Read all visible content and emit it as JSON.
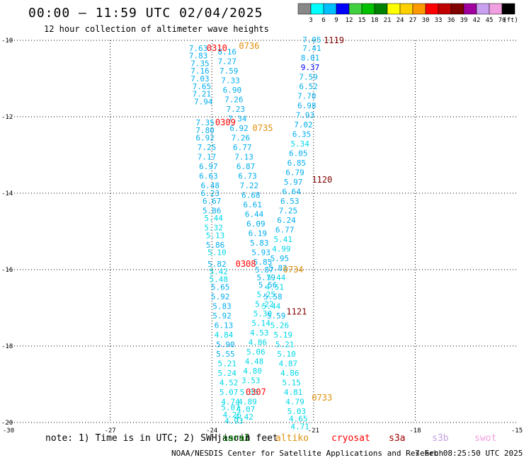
{
  "title": "00:00 – 11:59 UTC 02/04/2025",
  "subtitle": "12 hour collection of altimeter wave heights",
  "note": "note: 1) Time is in UTC; 2) SWH is in feet",
  "credit": "NOAA/NESDIS Center for Satellite Applications and Research",
  "generated": "7 Feb 08:25:50 UTC 2025",
  "satellites": [
    {
      "name": "jason3",
      "label": "jason3",
      "color": "#000000"
    },
    {
      "name": "saral",
      "label": "saral",
      "color": "#008000"
    },
    {
      "name": "altika",
      "label": "altiko",
      "color": "#e0900a"
    },
    {
      "name": "cryosat",
      "label": "cryosat",
      "color": "#ff0000"
    },
    {
      "name": "s3a",
      "label": "s3a",
      "color": "#a00000"
    },
    {
      "name": "s3b",
      "label": "s3b",
      "color": "#c0a0e0"
    },
    {
      "name": "swot",
      "label": "swot",
      "color": "#f0a0e0"
    }
  ],
  "chart_data": {
    "type": "scatter",
    "xlim": [
      -30,
      -15
    ],
    "ylim": [
      -20,
      -10
    ],
    "grid": true,
    "x_ticks": [
      "-30",
      "-27",
      "-24",
      "-21",
      "-18",
      "-15"
    ],
    "y_ticks": [
      "-10",
      "-12",
      "-14",
      "-16",
      "-18",
      "-20"
    ],
    "colorbar": {
      "unit": "(ft)",
      "labels": [
        "3",
        "6",
        "9",
        "12",
        "15",
        "18",
        "21",
        "24",
        "27",
        "30",
        "33",
        "36",
        "39",
        "42",
        "45",
        "70"
      ],
      "colors": [
        "#888888",
        "#00ffff",
        "#00bfff",
        "#0000ff",
        "#40d040",
        "#00c000",
        "#008000",
        "#ffff00",
        "#ffd000",
        "#ff9900",
        "#ff0000",
        "#c00000",
        "#800000",
        "#a000a0",
        "#c8a0f0",
        "#f0a0e0",
        "#000000"
      ]
    },
    "pass_labels": [
      {
        "text": "0310",
        "x": -23.85,
        "y": -10.2,
        "color": "#ff0000"
      },
      {
        "text": "0736",
        "x": -22.9,
        "y": -10.15,
        "color": "#e0900a"
      },
      {
        "text": "1119",
        "x": -20.4,
        "y": -10.0,
        "color": "#800000"
      },
      {
        "text": "0309",
        "x": -23.6,
        "y": -12.15,
        "color": "#ff0000"
      },
      {
        "text": "0735",
        "x": -22.5,
        "y": -12.3,
        "color": "#e0900a"
      },
      {
        "text": "1120",
        "x": -20.75,
        "y": -13.65,
        "color": "#800000"
      },
      {
        "text": "0308",
        "x": -23.0,
        "y": -15.85,
        "color": "#ff0000"
      },
      {
        "text": "0734",
        "x": -21.6,
        "y": -16.0,
        "color": "#e0900a"
      },
      {
        "text": "1121",
        "x": -21.5,
        "y": -17.1,
        "color": "#800000"
      },
      {
        "text": "0307",
        "x": -22.7,
        "y": -19.2,
        "color": "#ff0000"
      },
      {
        "text": "0733",
        "x": -20.75,
        "y": -19.35,
        "color": "#e0900a"
      }
    ],
    "series": [
      {
        "name": "cryosat",
        "color": "#00aeef",
        "points": [
          {
            "x": -24.4,
            "y": -10.2,
            "v": "7.63"
          },
          {
            "x": -24.4,
            "y": -10.4,
            "v": "7.83"
          },
          {
            "x": -24.35,
            "y": -10.6,
            "v": "7.35"
          },
          {
            "x": -24.35,
            "y": -10.8,
            "v": "7.16"
          },
          {
            "x": -24.35,
            "y": -11.0,
            "v": "7.03"
          },
          {
            "x": -24.3,
            "y": -11.2,
            "v": "7.65"
          },
          {
            "x": -24.3,
            "y": -11.4,
            "v": "7.21"
          },
          {
            "x": -24.25,
            "y": -11.6,
            "v": "7.94"
          },
          {
            "x": -24.2,
            "y": -12.15,
            "v": "7.35"
          },
          {
            "x": -24.2,
            "y": -12.35,
            "v": "7.80"
          },
          {
            "x": -24.2,
            "y": -12.55,
            "v": "6.92"
          },
          {
            "x": -24.15,
            "y": -12.8,
            "v": "7.25"
          },
          {
            "x": -24.15,
            "y": -13.05,
            "v": "7.17"
          },
          {
            "x": -24.1,
            "y": -13.3,
            "v": "6.97"
          },
          {
            "x": -24.1,
            "y": -13.55,
            "v": "6.63"
          },
          {
            "x": -24.05,
            "y": -13.8,
            "v": "6.48"
          },
          {
            "x": -24.05,
            "y": -14.0,
            "v": "6.23"
          },
          {
            "x": -24.0,
            "y": -14.2,
            "v": "6.67"
          },
          {
            "x": -24.0,
            "y": -14.45,
            "v": "5.86"
          },
          {
            "x": -23.95,
            "y": -14.65,
            "v": "5.44"
          },
          {
            "x": -23.95,
            "y": -14.9,
            "v": "5.32"
          },
          {
            "x": -23.9,
            "y": -15.1,
            "v": "5.13"
          },
          {
            "x": -23.9,
            "y": -15.35,
            "v": "5.86"
          },
          {
            "x": -23.85,
            "y": -15.55,
            "v": "5.10"
          },
          {
            "x": -23.85,
            "y": -15.85,
            "v": "5.82"
          },
          {
            "x": -23.8,
            "y": -16.05,
            "v": "5.42"
          },
          {
            "x": -23.8,
            "y": -16.25,
            "v": "5.48"
          },
          {
            "x": -23.75,
            "y": -16.45,
            "v": "5.65"
          },
          {
            "x": -23.75,
            "y": -16.7,
            "v": "5.92"
          },
          {
            "x": -23.7,
            "y": -16.95,
            "v": "5.83"
          },
          {
            "x": -23.7,
            "y": -17.2,
            "v": "5.92"
          },
          {
            "x": -23.65,
            "y": -17.45,
            "v": "6.13"
          },
          {
            "x": -23.65,
            "y": -17.7,
            "v": "4.84"
          },
          {
            "x": -23.6,
            "y": -17.95,
            "v": "5.90"
          },
          {
            "x": -23.6,
            "y": -18.2,
            "v": "5.55"
          },
          {
            "x": -23.55,
            "y": -18.45,
            "v": "5.21"
          },
          {
            "x": -23.55,
            "y": -18.7,
            "v": "5.24"
          },
          {
            "x": -23.5,
            "y": -18.95,
            "v": "4.52"
          },
          {
            "x": -23.5,
            "y": -19.2,
            "v": "5.07"
          },
          {
            "x": -23.45,
            "y": -19.45,
            "v": "4.74"
          },
          {
            "x": -23.45,
            "y": -19.6,
            "v": "5.07"
          },
          {
            "x": -23.4,
            "y": -19.8,
            "v": "4.26"
          },
          {
            "x": -23.35,
            "y": -19.95,
            "v": "4.93"
          }
        ]
      },
      {
        "name": "altika",
        "color": "#00aeef",
        "points": [
          {
            "x": -23.55,
            "y": -10.3,
            "v": "8.16"
          },
          {
            "x": -23.55,
            "y": -10.55,
            "v": "7.27"
          },
          {
            "x": -23.5,
            "y": -10.8,
            "v": "7.59"
          },
          {
            "x": -23.45,
            "y": -11.05,
            "v": "7.33"
          },
          {
            "x": -23.4,
            "y": -11.3,
            "v": "6.90"
          },
          {
            "x": -23.35,
            "y": -11.55,
            "v": "7.26"
          },
          {
            "x": -23.3,
            "y": -11.8,
            "v": "7.23"
          },
          {
            "x": -23.25,
            "y": -12.05,
            "v": "7.34"
          },
          {
            "x": -23.2,
            "y": -12.3,
            "v": "6.92"
          },
          {
            "x": -23.15,
            "y": -12.55,
            "v": "7.26"
          },
          {
            "x": -23.1,
            "y": -12.8,
            "v": "6.77"
          },
          {
            "x": -23.05,
            "y": -13.05,
            "v": "7.13"
          },
          {
            "x": -23.0,
            "y": -13.3,
            "v": "6.87"
          },
          {
            "x": -22.95,
            "y": -13.55,
            "v": "6.73"
          },
          {
            "x": -22.9,
            "y": -13.8,
            "v": "7.22"
          },
          {
            "x": -22.85,
            "y": -14.05,
            "v": "6.68"
          },
          {
            "x": -22.8,
            "y": -14.3,
            "v": "6.61"
          },
          {
            "x": -22.75,
            "y": -14.55,
            "v": "6.44"
          },
          {
            "x": -22.7,
            "y": -14.8,
            "v": "6.09"
          },
          {
            "x": -22.65,
            "y": -15.05,
            "v": "6.19"
          },
          {
            "x": -22.6,
            "y": -15.3,
            "v": "5.83"
          },
          {
            "x": -22.55,
            "y": -15.55,
            "v": "5.93"
          },
          {
            "x": -22.5,
            "y": -15.8,
            "v": "5.85"
          },
          {
            "x": -22.45,
            "y": -16.0,
            "v": "5.87"
          },
          {
            "x": -22.4,
            "y": -16.2,
            "v": "5.79"
          },
          {
            "x": -22.35,
            "y": -16.4,
            "v": "5.56"
          },
          {
            "x": -22.4,
            "y": -16.65,
            "v": "5.25"
          },
          {
            "x": -22.45,
            "y": -16.9,
            "v": "5.22"
          },
          {
            "x": -22.5,
            "y": -17.15,
            "v": "5.30"
          },
          {
            "x": -22.55,
            "y": -17.4,
            "v": "5.14"
          },
          {
            "x": -22.6,
            "y": -17.65,
            "v": "4.53"
          },
          {
            "x": -22.65,
            "y": -17.9,
            "v": "4.86"
          },
          {
            "x": -22.7,
            "y": -18.15,
            "v": "5.06"
          },
          {
            "x": -22.75,
            "y": -18.4,
            "v": "4.48"
          },
          {
            "x": -22.8,
            "y": -18.65,
            "v": "4.80"
          },
          {
            "x": -22.85,
            "y": -18.9,
            "v": "3.53"
          },
          {
            "x": -22.9,
            "y": -19.2,
            "v": "5.35"
          },
          {
            "x": -22.95,
            "y": -19.45,
            "v": "4.89"
          },
          {
            "x": -23.0,
            "y": -19.65,
            "v": "4.07"
          },
          {
            "x": -23.05,
            "y": -19.85,
            "v": "4.42"
          }
        ]
      },
      {
        "name": "s3a",
        "color": "#00aeef",
        "points": [
          {
            "x": -21.05,
            "y": -9.98,
            "v": "7.05"
          },
          {
            "x": -21.05,
            "y": -10.2,
            "v": "7.41"
          },
          {
            "x": -21.1,
            "y": -10.45,
            "v": "8.01"
          },
          {
            "x": -21.1,
            "y": -10.7,
            "v": "9.37"
          },
          {
            "x": -21.15,
            "y": -10.95,
            "v": "7.59"
          },
          {
            "x": -21.15,
            "y": -11.2,
            "v": "6.52"
          },
          {
            "x": -21.2,
            "y": -11.45,
            "v": "7.70"
          },
          {
            "x": -21.2,
            "y": -11.7,
            "v": "6.98"
          },
          {
            "x": -21.25,
            "y": -11.95,
            "v": "7.93"
          },
          {
            "x": -21.3,
            "y": -12.2,
            "v": "7.02"
          },
          {
            "x": -21.35,
            "y": -12.45,
            "v": "6.35"
          },
          {
            "x": -21.4,
            "y": -12.7,
            "v": "5.34"
          },
          {
            "x": -21.45,
            "y": -12.95,
            "v": "6.05"
          },
          {
            "x": -21.5,
            "y": -13.2,
            "v": "6.85"
          },
          {
            "x": -21.55,
            "y": -13.45,
            "v": "6.79"
          },
          {
            "x": -21.6,
            "y": -13.7,
            "v": "5.97"
          },
          {
            "x": -21.65,
            "y": -13.95,
            "v": "6.64"
          },
          {
            "x": -21.7,
            "y": -14.2,
            "v": "6.53"
          },
          {
            "x": -21.75,
            "y": -14.45,
            "v": "7.25"
          },
          {
            "x": -21.8,
            "y": -14.7,
            "v": "6.24"
          },
          {
            "x": -21.85,
            "y": -14.95,
            "v": "6.77"
          },
          {
            "x": -21.9,
            "y": -15.2,
            "v": "5.41"
          },
          {
            "x": -21.95,
            "y": -15.45,
            "v": "4.99"
          },
          {
            "x": -22.0,
            "y": -15.7,
            "v": "5.95"
          },
          {
            "x": -22.05,
            "y": -15.95,
            "v": "5.82"
          },
          {
            "x": -22.1,
            "y": -16.2,
            "v": "5.44"
          },
          {
            "x": -22.15,
            "y": -16.45,
            "v": "4.51"
          },
          {
            "x": -22.2,
            "y": -16.7,
            "v": "5.58"
          },
          {
            "x": -22.25,
            "y": -16.95,
            "v": "5.44"
          },
          {
            "x": -22.1,
            "y": -17.2,
            "v": "5.59"
          },
          {
            "x": -22.0,
            "y": -17.45,
            "v": "5.26"
          },
          {
            "x": -21.9,
            "y": -17.7,
            "v": "5.19"
          },
          {
            "x": -21.85,
            "y": -17.95,
            "v": "5.21"
          },
          {
            "x": -21.8,
            "y": -18.2,
            "v": "5.10"
          },
          {
            "x": -21.75,
            "y": -18.45,
            "v": "4.87"
          },
          {
            "x": -21.7,
            "y": -18.7,
            "v": "4.86"
          },
          {
            "x": -21.65,
            "y": -18.95,
            "v": "5.15"
          },
          {
            "x": -21.6,
            "y": -19.2,
            "v": "4.81"
          },
          {
            "x": -21.55,
            "y": -19.45,
            "v": "4.79"
          },
          {
            "x": -21.5,
            "y": -19.7,
            "v": "5.03"
          },
          {
            "x": -21.45,
            "y": -19.9,
            "v": "4.65"
          },
          {
            "x": -21.4,
            "y": -20.1,
            "v": "4.71"
          }
        ]
      }
    ]
  }
}
